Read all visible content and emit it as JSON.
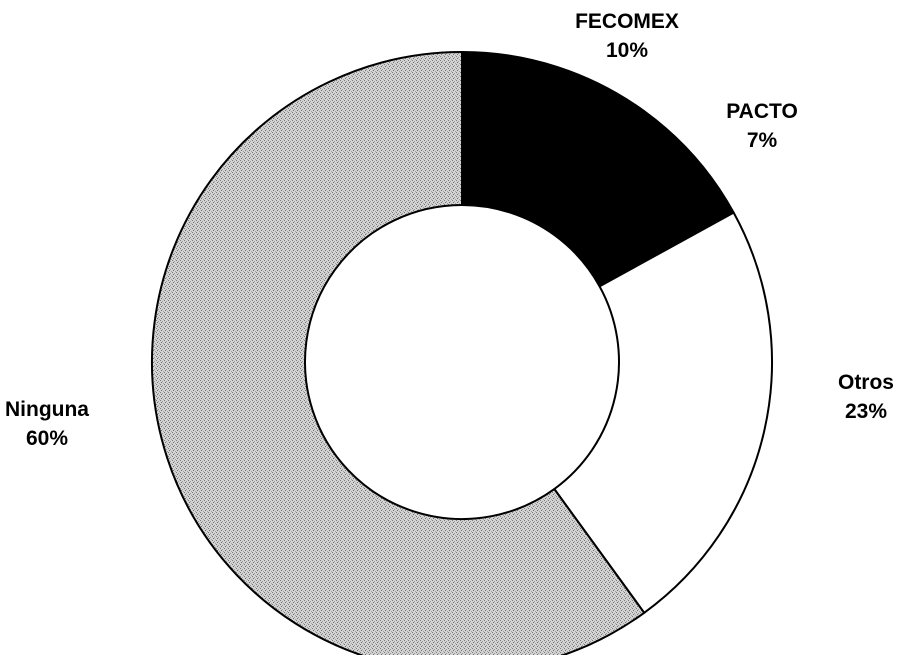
{
  "chart_data": {
    "type": "pie",
    "variant": "donut",
    "start_angle_deg": 0,
    "direction": "clockwise",
    "slices": [
      {
        "name": "FECOMEX",
        "value": 10,
        "value_label": "10%",
        "fill": "#000000",
        "pattern": "solid"
      },
      {
        "name": "PACTO",
        "value": 7,
        "value_label": "7%",
        "fill": "#000000",
        "pattern": "solid"
      },
      {
        "name": "Otros",
        "value": 23,
        "value_label": "23%",
        "fill": "#ffffff",
        "pattern": "solid"
      },
      {
        "name": "Ninguna",
        "value": 60,
        "value_label": "60%",
        "fill": "#c8c8c8",
        "pattern": "stipple"
      }
    ],
    "title": "",
    "legend": "none"
  }
}
